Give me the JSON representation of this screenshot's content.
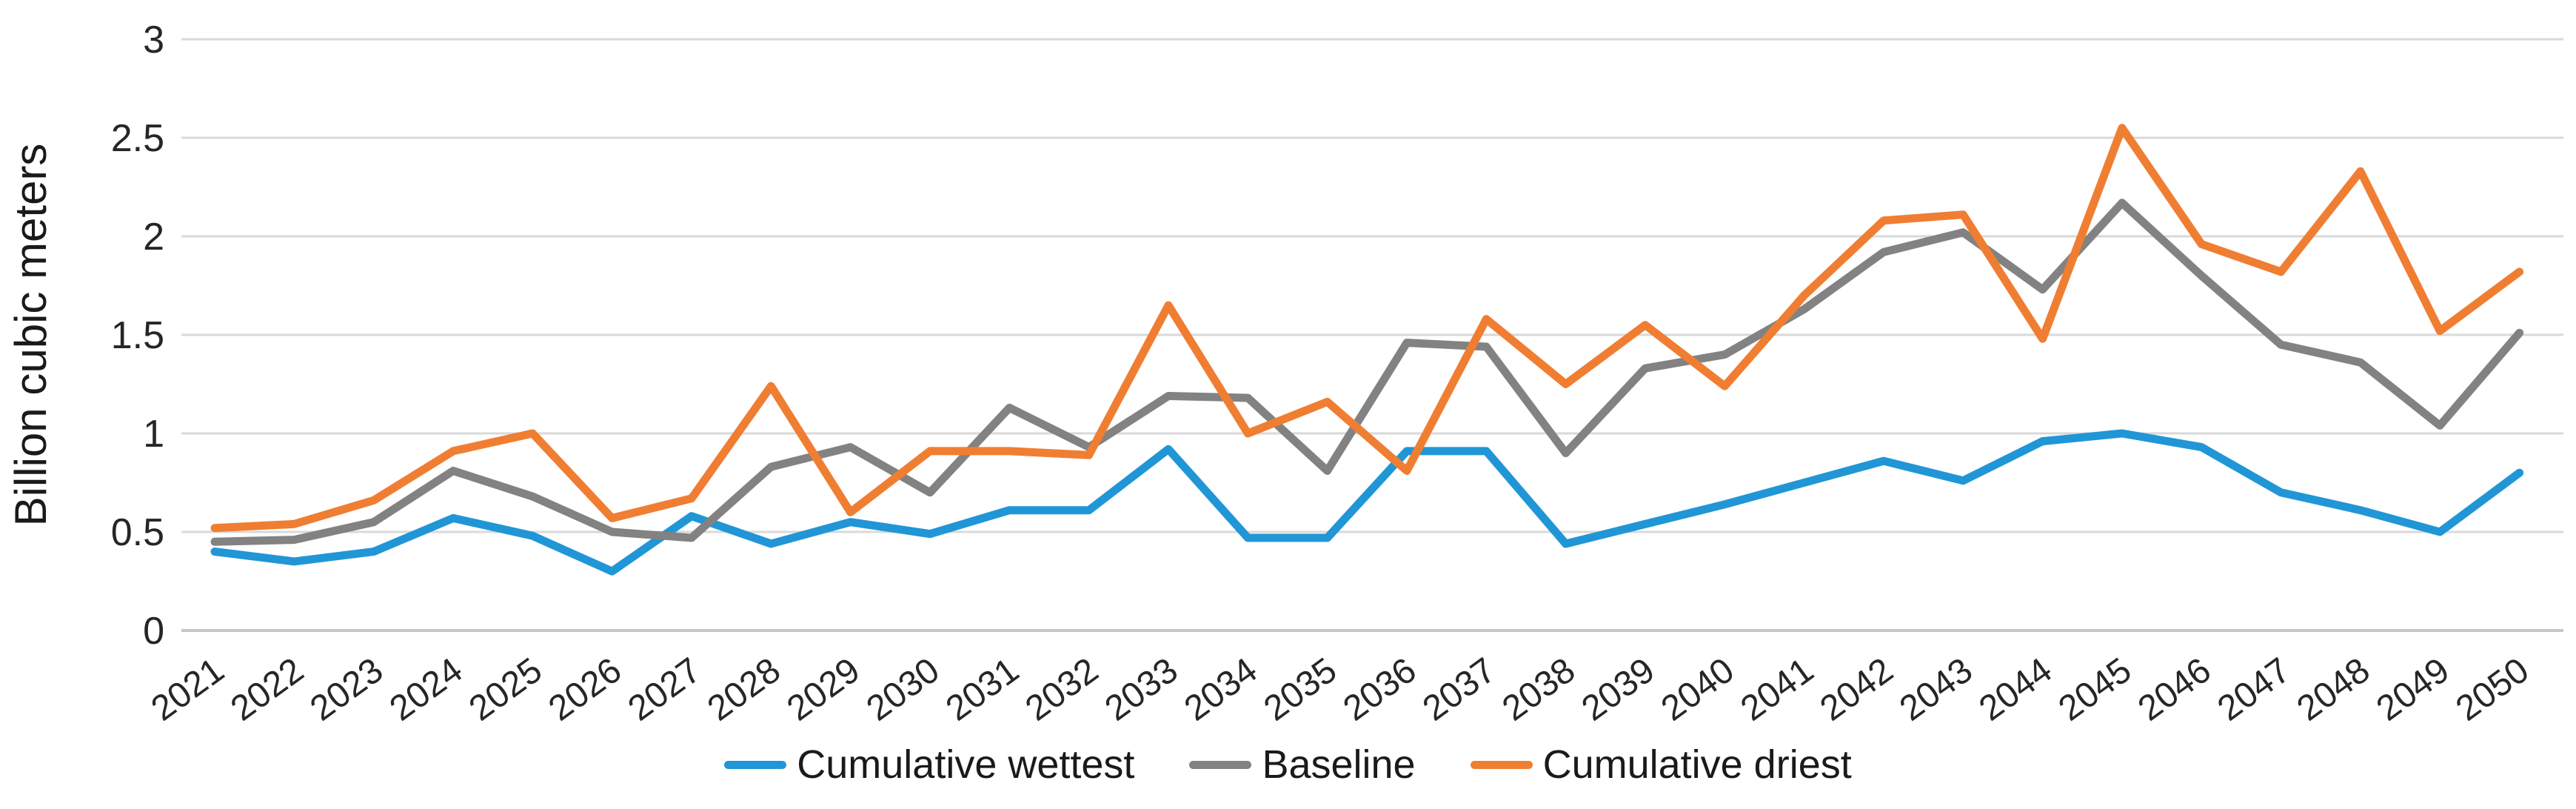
{
  "figure": {
    "background": "#ffffff",
    "y_axis_title": "Billion cubic meters"
  },
  "colors": {
    "gridline": "#d9d9d9",
    "axis_line": "#c6c6c6",
    "tick_label": "#262626",
    "axis_title": "#1a1a1a",
    "legend_text": "#1a1a1a",
    "wettest_blue": "#2196d6",
    "baseline_gray": "#828282",
    "driest_orange": "#f07e32"
  },
  "chart_data": {
    "type": "line",
    "title": "",
    "xlabel": "",
    "ylabel": "Billion cubic meters",
    "ylim": [
      0,
      3
    ],
    "ytick_step": 0.5,
    "ytick_labels": [
      "0",
      "0.5",
      "1",
      "1.5",
      "2",
      "2.5",
      "3"
    ],
    "grid": true,
    "legend_position": "bottom",
    "categories": [
      2021,
      2022,
      2023,
      2024,
      2025,
      2026,
      2027,
      2028,
      2029,
      2030,
      2031,
      2032,
      2033,
      2034,
      2035,
      2036,
      2037,
      2038,
      2039,
      2040,
      2041,
      2042,
      2043,
      2044,
      2045,
      2046,
      2047,
      2048,
      2049,
      2050
    ],
    "series": [
      {
        "name": "Cumulative wettest",
        "color": "#2196d6",
        "values": [
          0.4,
          0.35,
          0.4,
          0.57,
          0.48,
          0.3,
          0.58,
          0.44,
          0.55,
          0.49,
          0.61,
          0.61,
          0.92,
          0.47,
          0.47,
          0.91,
          0.91,
          0.44,
          0.54,
          0.64,
          0.75,
          0.86,
          0.76,
          0.96,
          1.0,
          0.93,
          0.7,
          0.61,
          0.5,
          0.8
        ]
      },
      {
        "name": "Baseline",
        "color": "#828282",
        "values": [
          0.45,
          0.46,
          0.55,
          0.81,
          0.68,
          0.5,
          0.47,
          0.83,
          0.93,
          0.7,
          1.13,
          0.93,
          1.19,
          1.18,
          0.81,
          1.46,
          1.44,
          0.9,
          1.33,
          1.4,
          1.63,
          1.92,
          2.02,
          1.73,
          2.17,
          1.8,
          1.45,
          1.36,
          1.04,
          1.51
        ]
      },
      {
        "name": "Cumulative driest",
        "color": "#f07e32",
        "values": [
          0.52,
          0.54,
          0.66,
          0.91,
          1.0,
          0.57,
          0.67,
          1.24,
          0.6,
          0.91,
          0.91,
          0.89,
          1.65,
          1.0,
          1.16,
          0.81,
          1.58,
          1.25,
          1.55,
          1.24,
          1.7,
          2.08,
          2.11,
          1.48,
          2.55,
          1.96,
          1.82,
          2.33,
          1.52,
          1.82
        ]
      }
    ]
  }
}
